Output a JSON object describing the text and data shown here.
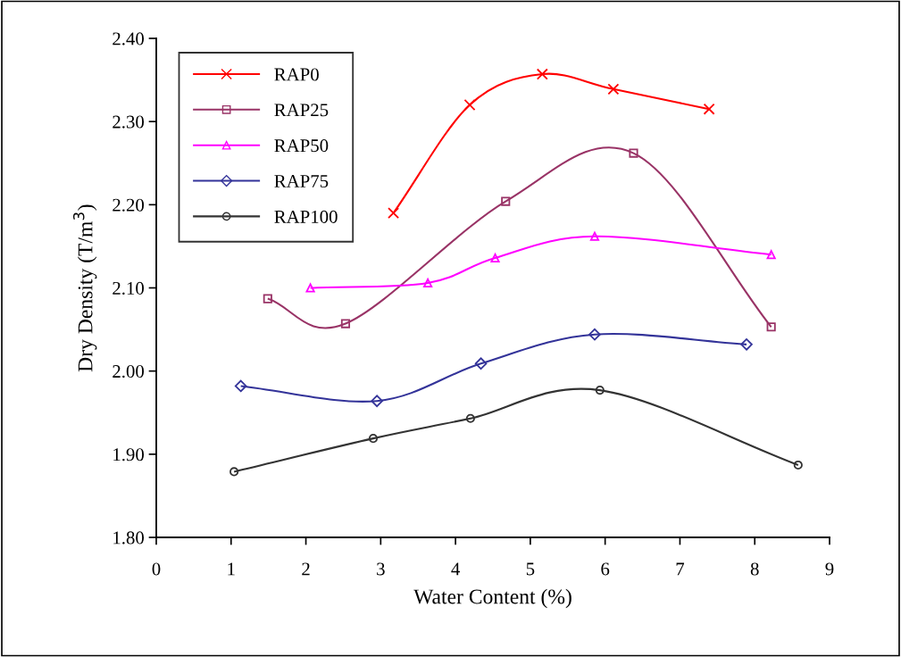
{
  "chart_data": {
    "type": "line",
    "xlabel": "Water Content (%)",
    "ylabel": "Dry Density (T/m$^{3}$)",
    "xlim": [
      0,
      9
    ],
    "xticks": [
      0,
      1,
      2,
      3,
      4,
      5,
      6,
      7,
      8,
      9
    ],
    "ylim": [
      1.8,
      2.4
    ],
    "yticks": [
      {
        "value": 1.8,
        "label": "1.80"
      },
      {
        "value": 1.9,
        "label": "1.90"
      },
      {
        "value": 2.0,
        "label": "2.00"
      },
      {
        "value": 2.1,
        "label": "2.10"
      },
      {
        "value": 2.2,
        "label": "2.20"
      },
      {
        "value": 2.3,
        "label": "2.30"
      },
      {
        "value": 2.4,
        "label": "2.40"
      }
    ],
    "grid": false,
    "legend": "top left",
    "line_style": "solid",
    "series": [
      {
        "name": "RAP0",
        "color": "#ff0000",
        "marker": "cross",
        "x": [
          3.17,
          4.19,
          5.16,
          6.11,
          7.39
        ],
        "values": [
          2.19,
          2.32,
          2.357,
          2.339,
          2.315
        ]
      },
      {
        "name": "RAP25",
        "color": "#993366",
        "marker": "square",
        "x": [
          1.49,
          2.53,
          4.67,
          6.38,
          8.22
        ],
        "values": [
          2.087,
          2.057,
          2.204,
          2.262,
          2.053
        ]
      },
      {
        "name": "RAP50",
        "color": "#ff00ff",
        "marker": "triangle",
        "x": [
          2.06,
          3.63,
          4.53,
          5.86,
          8.22
        ],
        "values": [
          2.1,
          2.106,
          2.136,
          2.162,
          2.14
        ]
      },
      {
        "name": "RAP75",
        "color": "#333399",
        "marker": "diamond",
        "x": [
          1.13,
          2.95,
          4.34,
          5.86,
          7.89
        ],
        "values": [
          1.982,
          1.964,
          2.009,
          2.044,
          2.032
        ]
      },
      {
        "name": "RAP100",
        "color": "#333333",
        "marker": "circle",
        "x": [
          1.04,
          2.9,
          4.2,
          5.93,
          8.58
        ],
        "values": [
          1.879,
          1.919,
          1.943,
          1.977,
          1.887
        ]
      }
    ]
  }
}
